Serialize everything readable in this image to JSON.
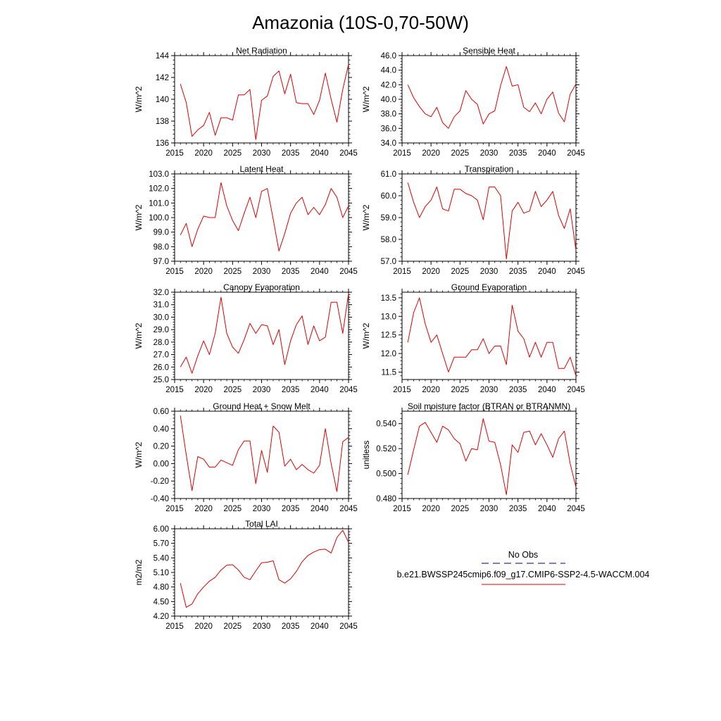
{
  "figure": {
    "title": "Amazonia (10S-0,70-50W)",
    "legend": {
      "entries": [
        {
          "label": "No Obs",
          "color": "#000080",
          "style": "dashed"
        },
        {
          "label": "b.e21.BWSSP245cmip6.f09_g17.CMIP6-SSP2-4.5-WACCM.004",
          "color": "#e00000",
          "style": "solid"
        }
      ]
    }
  },
  "chart_data": [
    {
      "type": "line",
      "title": "Net Radiation",
      "ylabel": "W/m^2",
      "xlim": [
        2015,
        2045
      ],
      "ylim": [
        136,
        144
      ],
      "xticks": [
        2015,
        2020,
        2025,
        2030,
        2035,
        2040,
        2045
      ],
      "yticks": [
        "136",
        "138",
        "140",
        "142",
        "144"
      ],
      "x": [
        2016,
        2017,
        2018,
        2019,
        2020,
        2021,
        2022,
        2023,
        2024,
        2025,
        2026,
        2027,
        2028,
        2029,
        2030,
        2031,
        2032,
        2033,
        2034,
        2035,
        2036,
        2037,
        2038,
        2039,
        2040,
        2041,
        2042,
        2043,
        2044,
        2045
      ],
      "values": [
        141.4,
        139.7,
        136.6,
        137.2,
        137.6,
        138.8,
        136.7,
        138.3,
        138.3,
        138.1,
        140.4,
        140.4,
        140.9,
        136.3,
        139.9,
        140.3,
        142.1,
        142.6,
        140.5,
        142.3,
        139.7,
        139.6,
        139.6,
        138.6,
        139.9,
        142.4,
        140.0,
        137.9,
        140.9,
        143.2
      ],
      "color": "#e00000"
    },
    {
      "type": "line",
      "title": "Sensible Heat",
      "ylabel": "W/m^2",
      "xlim": [
        2015,
        2045
      ],
      "ylim": [
        34,
        46
      ],
      "xticks": [
        2015,
        2020,
        2025,
        2030,
        2035,
        2040,
        2045
      ],
      "yticks": [
        "34.0",
        "36.0",
        "38.0",
        "40.0",
        "42.0",
        "44.0",
        "46.0"
      ],
      "x": [
        2016,
        2017,
        2018,
        2019,
        2020,
        2021,
        2022,
        2023,
        2024,
        2025,
        2026,
        2027,
        2028,
        2029,
        2030,
        2031,
        2032,
        2033,
        2034,
        2035,
        2036,
        2037,
        2038,
        2039,
        2040,
        2041,
        2042,
        2043,
        2044,
        2045
      ],
      "values": [
        42.0,
        40.2,
        39.0,
        38.0,
        37.6,
        38.9,
        36.8,
        36.0,
        37.6,
        38.4,
        41.2,
        40.0,
        39.3,
        36.6,
        38.0,
        38.4,
        41.9,
        44.5,
        41.8,
        42.0,
        38.9,
        38.3,
        39.5,
        38.0,
        40.0,
        41.0,
        38.1,
        36.9,
        40.7,
        42.1
      ],
      "color": "#e00000"
    },
    {
      "type": "line",
      "title": "Latent Heat",
      "ylabel": "W/m^2",
      "xlim": [
        2015,
        2045
      ],
      "ylim": [
        97,
        103
      ],
      "xticks": [
        2015,
        2020,
        2025,
        2030,
        2035,
        2040,
        2045
      ],
      "yticks": [
        "97.0",
        "98.0",
        "99.0",
        "100.0",
        "101.0",
        "102.0",
        "103.0"
      ],
      "x": [
        2016,
        2017,
        2018,
        2019,
        2020,
        2021,
        2022,
        2023,
        2024,
        2025,
        2026,
        2027,
        2028,
        2029,
        2030,
        2031,
        2032,
        2033,
        2034,
        2035,
        2036,
        2037,
        2038,
        2039,
        2040,
        2041,
        2042,
        2043,
        2044,
        2045
      ],
      "values": [
        98.8,
        99.6,
        98.0,
        99.2,
        100.1,
        100.0,
        100.0,
        102.4,
        100.8,
        99.8,
        99.1,
        100.3,
        101.4,
        100.0,
        101.8,
        102.0,
        99.9,
        97.7,
        98.9,
        100.3,
        101.0,
        101.4,
        100.2,
        100.7,
        100.2,
        100.9,
        102.0,
        101.4,
        100.0,
        100.8
      ],
      "color": "#e00000"
    },
    {
      "type": "line",
      "title": "Transpiration",
      "ylabel": "W/m^2",
      "xlim": [
        2015,
        2045
      ],
      "ylim": [
        57,
        61
      ],
      "xticks": [
        2015,
        2020,
        2025,
        2030,
        2035,
        2040,
        2045
      ],
      "yticks": [
        "57.0",
        "58.0",
        "59.0",
        "60.0",
        "61.0"
      ],
      "x": [
        2016,
        2017,
        2018,
        2019,
        2020,
        2021,
        2022,
        2023,
        2024,
        2025,
        2026,
        2027,
        2028,
        2029,
        2030,
        2031,
        2032,
        2033,
        2034,
        2035,
        2036,
        2037,
        2038,
        2039,
        2040,
        2041,
        2042,
        2043,
        2044,
        2045
      ],
      "values": [
        60.6,
        59.7,
        59.0,
        59.5,
        59.8,
        60.4,
        59.4,
        59.3,
        60.3,
        60.3,
        60.1,
        60.0,
        59.8,
        58.9,
        60.4,
        60.4,
        60.0,
        57.1,
        59.3,
        59.7,
        59.2,
        59.3,
        60.2,
        59.5,
        59.8,
        60.2,
        59.1,
        58.5,
        59.4,
        57.5
      ],
      "color": "#e00000"
    },
    {
      "type": "line",
      "title": "Canopy Evaporation",
      "ylabel": "W/m^2",
      "xlim": [
        2015,
        2045
      ],
      "ylim": [
        25,
        32
      ],
      "xticks": [
        2015,
        2020,
        2025,
        2030,
        2035,
        2040,
        2045
      ],
      "yticks": [
        "25.0",
        "26.0",
        "27.0",
        "28.0",
        "29.0",
        "30.0",
        "31.0",
        "32.0"
      ],
      "x": [
        2016,
        2017,
        2018,
        2019,
        2020,
        2021,
        2022,
        2023,
        2024,
        2025,
        2026,
        2027,
        2028,
        2029,
        2030,
        2031,
        2032,
        2033,
        2034,
        2035,
        2036,
        2037,
        2038,
        2039,
        2040,
        2041,
        2042,
        2043,
        2044,
        2045
      ],
      "values": [
        26.0,
        26.8,
        25.5,
        26.9,
        28.1,
        27.0,
        28.7,
        31.6,
        28.7,
        27.6,
        27.1,
        28.2,
        29.5,
        28.7,
        29.4,
        29.3,
        27.8,
        29.0,
        26.2,
        28.1,
        29.4,
        30.1,
        27.8,
        29.3,
        28.1,
        28.4,
        31.2,
        31.2,
        28.7,
        31.9
      ],
      "color": "#e00000"
    },
    {
      "type": "line",
      "title": "Ground Evaporation",
      "ylabel": "W/m^2",
      "xlim": [
        2015,
        2045
      ],
      "ylim": [
        11.3,
        13.65
      ],
      "xticks": [
        2015,
        2020,
        2025,
        2030,
        2035,
        2040,
        2045
      ],
      "yticks": [
        "11.5",
        "12.0",
        "12.5",
        "13.0",
        "13.5"
      ],
      "x": [
        2016,
        2017,
        2018,
        2019,
        2020,
        2021,
        2022,
        2023,
        2024,
        2025,
        2026,
        2027,
        2028,
        2029,
        2030,
        2031,
        2032,
        2033,
        2034,
        2035,
        2036,
        2037,
        2038,
        2039,
        2040,
        2041,
        2042,
        2043,
        2044,
        2045
      ],
      "values": [
        12.3,
        13.1,
        13.5,
        12.8,
        12.3,
        12.5,
        12.0,
        11.5,
        11.9,
        11.9,
        11.9,
        12.1,
        12.1,
        12.4,
        12.0,
        12.2,
        12.2,
        11.7,
        13.3,
        12.6,
        12.4,
        11.9,
        12.3,
        11.9,
        12.3,
        12.3,
        11.6,
        11.6,
        11.9,
        11.4
      ],
      "color": "#e00000"
    },
    {
      "type": "line",
      "title": "Ground Heat + Snow Melt",
      "ylabel": "W/m^2",
      "xlim": [
        2015,
        2045
      ],
      "ylim": [
        -0.4,
        0.6
      ],
      "xticks": [
        2015,
        2020,
        2025,
        2030,
        2035,
        2040,
        2045
      ],
      "yticks": [
        "-0.40",
        "-0.20",
        "0.00",
        "0.20",
        "0.40",
        "0.60"
      ],
      "x": [
        2016,
        2017,
        2018,
        2019,
        2020,
        2021,
        2022,
        2023,
        2024,
        2025,
        2026,
        2027,
        2028,
        2029,
        2030,
        2031,
        2032,
        2033,
        2034,
        2035,
        2036,
        2037,
        2038,
        2039,
        2040,
        2041,
        2042,
        2043,
        2044,
        2045
      ],
      "values": [
        0.55,
        0.1,
        -0.31,
        0.08,
        0.05,
        -0.04,
        -0.04,
        0.04,
        0.01,
        -0.02,
        0.16,
        0.26,
        0.26,
        -0.23,
        0.15,
        -0.1,
        0.43,
        0.36,
        -0.03,
        0.05,
        -0.07,
        -0.01,
        -0.07,
        -0.11,
        -0.02,
        0.4,
        0.0,
        -0.32,
        0.25,
        0.3
      ],
      "color": "#e00000"
    },
    {
      "type": "line",
      "title": "Soil moisture factor (BTRAN or BTRANMN)",
      "ylabel": "unitless",
      "xlim": [
        2015,
        2045
      ],
      "ylim": [
        0.48,
        0.55
      ],
      "xticks": [
        2015,
        2020,
        2025,
        2030,
        2035,
        2040,
        2045
      ],
      "yticks": [
        "0.480",
        "0.500",
        "0.520",
        "0.540"
      ],
      "x": [
        2016,
        2017,
        2018,
        2019,
        2020,
        2021,
        2022,
        2023,
        2024,
        2025,
        2026,
        2027,
        2028,
        2029,
        2030,
        2031,
        2032,
        2033,
        2034,
        2035,
        2036,
        2037,
        2038,
        2039,
        2040,
        2041,
        2042,
        2043,
        2044,
        2045
      ],
      "values": [
        0.499,
        0.519,
        0.538,
        0.541,
        0.533,
        0.525,
        0.538,
        0.535,
        0.528,
        0.524,
        0.51,
        0.52,
        0.519,
        0.544,
        0.526,
        0.525,
        0.507,
        0.483,
        0.523,
        0.517,
        0.533,
        0.534,
        0.523,
        0.532,
        0.523,
        0.513,
        0.528,
        0.534,
        0.508,
        0.489
      ],
      "color": "#e00000"
    },
    {
      "type": "line",
      "title": "Total LAI",
      "ylabel": "m2/m2",
      "xlim": [
        2015,
        2045
      ],
      "ylim": [
        4.2,
        6.0
      ],
      "xticks": [
        2015,
        2020,
        2025,
        2030,
        2035,
        2040,
        2045
      ],
      "yticks": [
        "4.20",
        "4.50",
        "4.80",
        "5.10",
        "5.40",
        "5.70",
        "6.00"
      ],
      "x": [
        2016,
        2017,
        2018,
        2019,
        2020,
        2021,
        2022,
        2023,
        2024,
        2025,
        2026,
        2027,
        2028,
        2029,
        2030,
        2031,
        2032,
        2033,
        2034,
        2035,
        2036,
        2037,
        2038,
        2039,
        2040,
        2041,
        2042,
        2043,
        2044,
        2045
      ],
      "values": [
        4.88,
        4.38,
        4.45,
        4.66,
        4.8,
        4.92,
        5.0,
        5.15,
        5.25,
        5.26,
        5.15,
        5.0,
        4.95,
        5.13,
        5.3,
        5.31,
        5.34,
        4.95,
        4.88,
        4.97,
        5.12,
        5.32,
        5.45,
        5.52,
        5.57,
        5.58,
        5.5,
        5.82,
        5.97,
        5.72
      ],
      "color": "#e00000"
    }
  ]
}
